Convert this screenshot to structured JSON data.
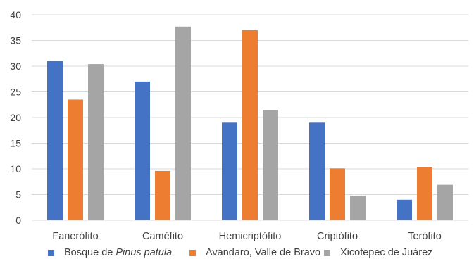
{
  "chart_data": {
    "type": "bar",
    "title": "",
    "xlabel": "",
    "ylabel": "",
    "ylim": [
      0,
      40
    ],
    "yticks": [
      "0",
      "5",
      "10",
      "15",
      "20",
      "25",
      "30",
      "35",
      "40"
    ],
    "grid": true,
    "legend_position": "bottom",
    "categories": [
      "Fanerófito",
      "Caméfito",
      "Hemicriptófito",
      "Criptófito",
      "Terófito"
    ],
    "series": [
      {
        "name": "Bosque de Pinus patula",
        "name_plain": "Bosque de ",
        "name_italic": "Pinus patula",
        "color": "#4472c4",
        "values": [
          31,
          27,
          19,
          19,
          4
        ]
      },
      {
        "name": "Avándaro, Valle de Bravo",
        "color": "#ed7d31",
        "values": [
          23.5,
          9.6,
          37,
          10.1,
          10.4
        ]
      },
      {
        "name": "Xicotepec de Juárez",
        "color": "#a5a5a5",
        "values": [
          30.4,
          37.7,
          21.5,
          4.8,
          6.9
        ]
      }
    ]
  }
}
